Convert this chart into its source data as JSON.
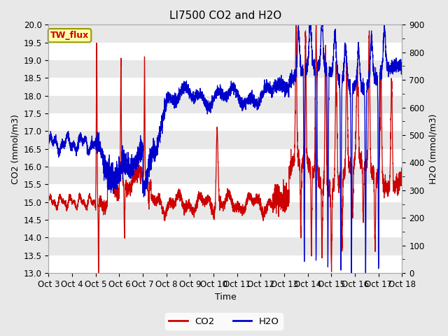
{
  "title": "LI7500 CO2 and H2O",
  "xlabel": "Time",
  "ylabel_left": "CO2 (mmol/m3)",
  "ylabel_right": "H2O (mmol/m3)",
  "ylim_left": [
    13.0,
    20.0
  ],
  "ylim_right": [
    0,
    900
  ],
  "xtick_labels": [
    "Oct 3",
    "Oct 4",
    "Oct 5",
    "Oct 6",
    "Oct 7",
    "Oct 8",
    "Oct 9",
    "Oct 10",
    "Oct 11",
    "Oct 12",
    "Oct 13",
    "Oct 14",
    "Oct 15",
    "Oct 16",
    "Oct 17",
    "Oct 18"
  ],
  "legend_labels": [
    "CO2",
    "H2O"
  ],
  "co2_color": "#cc0000",
  "h2o_color": "#0000cc",
  "fig_bg_color": "#e8e8e8",
  "plot_bg_color": "#e8e8e8",
  "annotation_text": "TW_flux",
  "annotation_bg": "#ffffaa",
  "annotation_border": "#999900",
  "title_fontsize": 11,
  "axis_label_fontsize": 9,
  "tick_fontsize": 8.5
}
